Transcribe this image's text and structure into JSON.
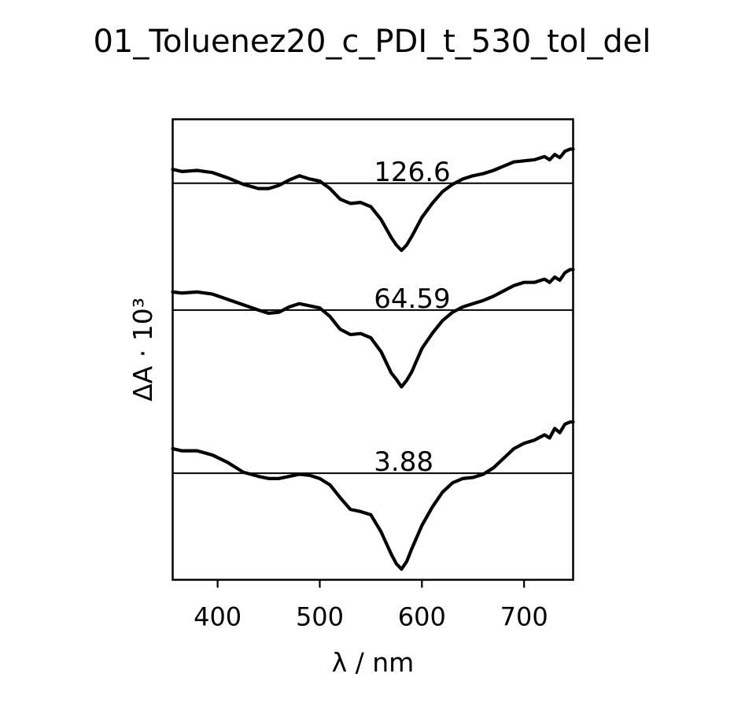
{
  "chart_data": {
    "type": "line",
    "title": "01_Toluenez20_c_PDI_t_530_tol_del",
    "xlabel": "λ / nm",
    "ylabel": "ΔA · 10³",
    "xlim": [
      356,
      748
    ],
    "xticks": [
      400,
      500,
      600,
      700
    ],
    "ylim": [
      -9.7,
      33.5
    ],
    "yticks_visible": false,
    "grid": false,
    "legend": "none",
    "line_color": "#000000",
    "x": [
      356,
      365,
      380,
      395,
      410,
      425,
      440,
      450,
      460,
      470,
      480,
      490,
      500,
      510,
      520,
      530,
      540,
      550,
      560,
      570,
      575,
      580,
      585,
      590,
      600,
      610,
      620,
      630,
      640,
      650,
      660,
      670,
      680,
      690,
      700,
      710,
      720,
      725,
      730,
      735,
      740,
      745,
      748
    ],
    "series": [
      {
        "label": "126.6",
        "offset": 27.5,
        "values": [
          1.3,
          1.1,
          1.2,
          1.0,
          0.5,
          -0.1,
          -0.5,
          -0.5,
          -0.2,
          0.3,
          0.7,
          0.4,
          0.2,
          -0.5,
          -1.5,
          -1.9,
          -1.8,
          -2.2,
          -3.4,
          -5.1,
          -5.8,
          -6.3,
          -5.8,
          -5.0,
          -3.2,
          -1.9,
          -0.8,
          -0.1,
          0.4,
          0.7,
          0.9,
          1.2,
          1.6,
          2.0,
          2.1,
          2.2,
          2.5,
          2.2,
          2.7,
          2.4,
          3.0,
          3.2,
          3.2
        ]
      },
      {
        "label": "64.59",
        "offset": 15.6,
        "values": [
          1.7,
          1.6,
          1.7,
          1.5,
          1.0,
          0.5,
          0.0,
          -0.3,
          -0.2,
          0.3,
          0.6,
          0.4,
          0.2,
          -0.6,
          -1.8,
          -2.3,
          -2.2,
          -2.6,
          -3.9,
          -5.9,
          -6.5,
          -7.2,
          -6.6,
          -5.8,
          -3.6,
          -2.2,
          -1.0,
          -0.2,
          0.3,
          0.6,
          0.9,
          1.3,
          1.8,
          2.3,
          2.6,
          2.6,
          2.9,
          2.6,
          3.1,
          2.8,
          3.5,
          3.8,
          3.8
        ]
      },
      {
        "label": "3.88",
        "offset": 0.3,
        "values": [
          2.3,
          2.1,
          2.1,
          1.7,
          1.0,
          0.1,
          -0.3,
          -0.5,
          -0.5,
          -0.3,
          -0.1,
          -0.2,
          -0.5,
          -1.1,
          -2.3,
          -3.4,
          -3.6,
          -3.9,
          -5.5,
          -7.6,
          -8.5,
          -9.0,
          -8.3,
          -7.1,
          -4.9,
          -3.2,
          -1.8,
          -0.9,
          -0.5,
          -0.4,
          -0.1,
          0.5,
          1.4,
          2.3,
          2.8,
          3.1,
          3.6,
          3.3,
          4.2,
          3.8,
          4.6,
          4.8,
          4.8
        ]
      }
    ]
  }
}
